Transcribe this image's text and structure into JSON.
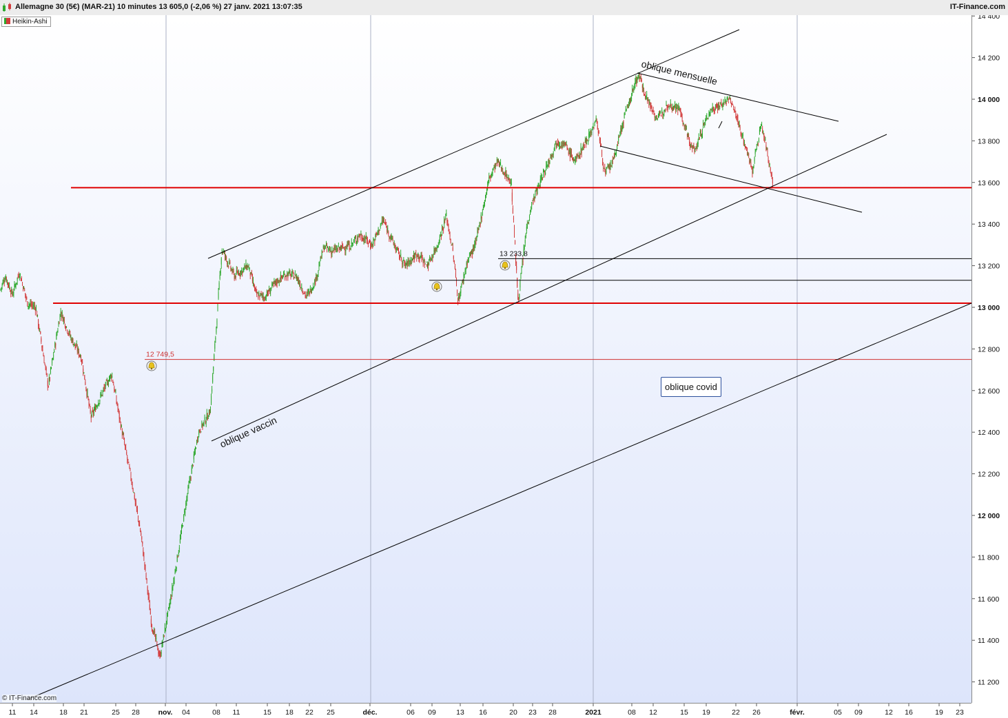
{
  "header": {
    "title": "Allemagne 30 (5€) (MAR-21) 10 minutes 13 605,0 (-2,06 %) 27 janv. 2021 13:07:35",
    "brand": "IT-Finance.com"
  },
  "indicator_badge": "Heikin-Ashi",
  "copyright": "© IT-Finance.com",
  "colors": {
    "up": "#2ea82e",
    "down": "#d23c3c",
    "support": "#e00000",
    "trend": "#000000"
  },
  "chart_data": {
    "type": "candlestick",
    "style": "Heikin-Ashi",
    "instrument": "Allemagne 30 (5€) (MAR-21)",
    "interval": "10 minutes",
    "last": "13 605,0",
    "change": "-2,06 %",
    "ylim": [
      11100,
      14450
    ],
    "y_ticks": [
      {
        "value": 11200,
        "label": "11 200",
        "bold": false
      },
      {
        "value": 11400,
        "label": "11 400",
        "bold": false
      },
      {
        "value": 11600,
        "label": "11 600",
        "bold": false
      },
      {
        "value": 11800,
        "label": "11 800",
        "bold": false
      },
      {
        "value": 12000,
        "label": "12 000",
        "bold": true
      },
      {
        "value": 12200,
        "label": "12 200",
        "bold": false
      },
      {
        "value": 12400,
        "label": "12 400",
        "bold": false
      },
      {
        "value": 12600,
        "label": "12 600",
        "bold": false
      },
      {
        "value": 12800,
        "label": "12 800",
        "bold": false
      },
      {
        "value": 13000,
        "label": "13 000",
        "bold": true
      },
      {
        "value": 13200,
        "label": "13 200",
        "bold": false
      },
      {
        "value": 13400,
        "label": "13 400",
        "bold": false
      },
      {
        "value": 13600,
        "label": "13 600",
        "bold": false
      },
      {
        "value": 13800,
        "label": "13 800",
        "bold": false
      },
      {
        "value": 14000,
        "label": "14 000",
        "bold": true
      },
      {
        "value": 14200,
        "label": "14 200",
        "bold": false
      },
      {
        "value": 14400,
        "label": "14 400",
        "bold": false
      }
    ],
    "x_ticks": [
      {
        "label": "11",
        "bold": false
      },
      {
        "label": "14",
        "bold": false
      },
      {
        "label": "18",
        "bold": false
      },
      {
        "label": "21",
        "bold": false
      },
      {
        "label": "25",
        "bold": false
      },
      {
        "label": "28",
        "bold": false
      },
      {
        "label": "nov.",
        "bold": true
      },
      {
        "label": "04",
        "bold": false
      },
      {
        "label": "08",
        "bold": false
      },
      {
        "label": "11",
        "bold": false
      },
      {
        "label": "15",
        "bold": false
      },
      {
        "label": "18",
        "bold": false
      },
      {
        "label": "22",
        "bold": false
      },
      {
        "label": "25",
        "bold": false
      },
      {
        "label": "déc.",
        "bold": true
      },
      {
        "label": "06",
        "bold": false
      },
      {
        "label": "09",
        "bold": false
      },
      {
        "label": "13",
        "bold": false
      },
      {
        "label": "16",
        "bold": false
      },
      {
        "label": "20",
        "bold": false
      },
      {
        "label": "23",
        "bold": false
      },
      {
        "label": "28",
        "bold": false
      },
      {
        "label": "2021",
        "bold": true
      },
      {
        "label": "08",
        "bold": false
      },
      {
        "label": "12",
        "bold": false
      },
      {
        "label": "15",
        "bold": false
      },
      {
        "label": "19",
        "bold": false
      },
      {
        "label": "22",
        "bold": false
      },
      {
        "label": "26",
        "bold": false
      },
      {
        "label": "févr.",
        "bold": true
      },
      {
        "label": "05",
        "bold": false
      },
      {
        "label": "09",
        "bold": false
      },
      {
        "label": "12",
        "bold": false
      },
      {
        "label": "16",
        "bold": false
      },
      {
        "label": "19",
        "bold": false
      },
      {
        "label": "23",
        "bold": false
      }
    ],
    "price_path": [
      [
        "oct. 8",
        13080
      ],
      [
        "oct. 9",
        13150
      ],
      [
        "oct. 12",
        13060
      ],
      [
        "oct. 13",
        13170
      ],
      [
        "oct. 14",
        13020
      ],
      [
        "oct. 15",
        13000
      ],
      [
        "oct. 16",
        12620
      ],
      [
        "oct. 19",
        12980
      ],
      [
        "oct. 20",
        12860
      ],
      [
        "oct. 21",
        12760
      ],
      [
        "oct. 22",
        12470
      ],
      [
        "oct. 23",
        12600
      ],
      [
        "oct. 26",
        12680
      ],
      [
        "oct. 27",
        12350
      ],
      [
        "oct. 28",
        12150
      ],
      [
        "oct. 29",
        11900
      ],
      [
        "oct. 30",
        11480
      ],
      [
        "oct. 31",
        11320
      ],
      [
        "nov. 2",
        11600
      ],
      [
        "nov. 3",
        11850
      ],
      [
        "nov. 4",
        12100
      ],
      [
        "nov. 5",
        12400
      ],
      [
        "nov. 6",
        12500
      ],
      [
        "nov. 9",
        13280
      ],
      [
        "nov. 10",
        13150
      ],
      [
        "nov. 11",
        13200
      ],
      [
        "nov. 12",
        13060
      ],
      [
        "nov. 13",
        13050
      ],
      [
        "nov. 16",
        13120
      ],
      [
        "nov. 17",
        13160
      ],
      [
        "nov. 18",
        13150
      ],
      [
        "nov. 20",
        13050
      ],
      [
        "nov. 23",
        13130
      ],
      [
        "nov. 24",
        13290
      ],
      [
        "nov. 25",
        13270
      ],
      [
        "nov. 26",
        13300
      ],
      [
        "nov. 27",
        13350
      ],
      [
        "nov. 30",
        13300
      ],
      [
        "déc. 1",
        13420
      ],
      [
        "déc. 2",
        13280
      ],
      [
        "déc. 3",
        13200
      ],
      [
        "déc. 4",
        13260
      ],
      [
        "déc. 7",
        13200
      ],
      [
        "déc. 8",
        13300
      ],
      [
        "déc. 9",
        13440
      ],
      [
        "déc. 10",
        13250
      ],
      [
        "déc. 11",
        13030
      ],
      [
        "déc. 14",
        13220
      ],
      [
        "déc. 15",
        13300
      ],
      [
        "déc. 16",
        13460
      ],
      [
        "déc. 17",
        13620
      ],
      [
        "déc. 18",
        13700
      ],
      [
        "déc. 20",
        13600
      ],
      [
        "déc. 21",
        13030
      ],
      [
        "déc. 22",
        13400
      ],
      [
        "déc. 23",
        13500
      ],
      [
        "déc. 28",
        13800
      ],
      [
        "déc. 29",
        13780
      ],
      [
        "déc. 30",
        13700
      ],
      [
        "janv. 4",
        13900
      ],
      [
        "janv. 5",
        13640
      ],
      [
        "janv. 6",
        13700
      ],
      [
        "janv. 7",
        13900
      ],
      [
        "janv. 8",
        14120
      ],
      [
        "janv. 11",
        13980
      ],
      [
        "janv. 12",
        13900
      ],
      [
        "janv. 13",
        13980
      ],
      [
        "janv. 14",
        13960
      ],
      [
        "janv. 15",
        13800
      ],
      [
        "janv. 18",
        13750
      ],
      [
        "janv. 19",
        13880
      ],
      [
        "janv. 20",
        13950
      ],
      [
        "janv. 21",
        14000
      ],
      [
        "janv. 22",
        13850
      ],
      [
        "janv. 25",
        13660
      ],
      [
        "janv. 26",
        13880
      ],
      [
        "janv. 27",
        13605
      ]
    ],
    "horizontal_levels": [
      {
        "value": 13575,
        "kind": "support",
        "label": ""
      },
      {
        "value": 13020,
        "kind": "support",
        "label": ""
      },
      {
        "value": 12749.5,
        "kind": "alert",
        "label": "12 749,5"
      },
      {
        "value": 13233.8,
        "kind": "alert",
        "label": "13 233,8"
      },
      {
        "value": 13130,
        "kind": "alert",
        "label": ""
      }
    ],
    "trendlines": [
      {
        "label": "oblique vaccin"
      },
      {
        "label": "oblique mensuelle"
      },
      {
        "label": "oblique covid"
      }
    ],
    "grid": "vertical month separators",
    "legend": "top-left"
  }
}
